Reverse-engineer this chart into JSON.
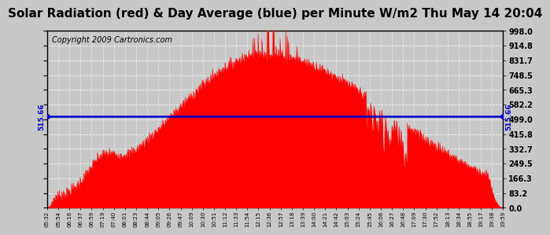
{
  "title": "Solar Radiation (red) & Day Average (blue) per Minute W/m2 Thu May 14 20:04",
  "copyright": "Copyright 2009 Cartronics.com",
  "y_max": 998.0,
  "y_min": 0.0,
  "y_ticks": [
    0.0,
    83.2,
    166.3,
    249.5,
    332.7,
    415.8,
    499.0,
    582.2,
    665.3,
    748.5,
    831.7,
    914.8,
    998.0
  ],
  "day_average": 515.66,
  "background_color": "#c8c8c8",
  "plot_bg_color": "#c8c8c8",
  "fill_color": "#ff0000",
  "line_color": "#ff0000",
  "avg_line_color": "#0000cc",
  "avg_label_color": "#0000cc",
  "title_fontsize": 11,
  "copyright_fontsize": 7,
  "grid_color": "#ffffff",
  "border_color": "#000000",
  "x_tick_labels": [
    "05:32",
    "05:54",
    "06:16",
    "06:37",
    "06:59",
    "07:19",
    "07:40",
    "08:01",
    "08:23",
    "08:44",
    "09:05",
    "09:26",
    "09:47",
    "10:09",
    "10:30",
    "10:51",
    "11:12",
    "11:33",
    "11:54",
    "12:15",
    "12:36",
    "12:57",
    "13:18",
    "13:39",
    "14:00",
    "14:21",
    "14:42",
    "15:03",
    "15:24",
    "15:45",
    "16:06",
    "16:27",
    "16:48",
    "17:09",
    "17:30",
    "17:52",
    "18:13",
    "18:34",
    "18:55",
    "19:17",
    "19:38",
    "19:59"
  ]
}
